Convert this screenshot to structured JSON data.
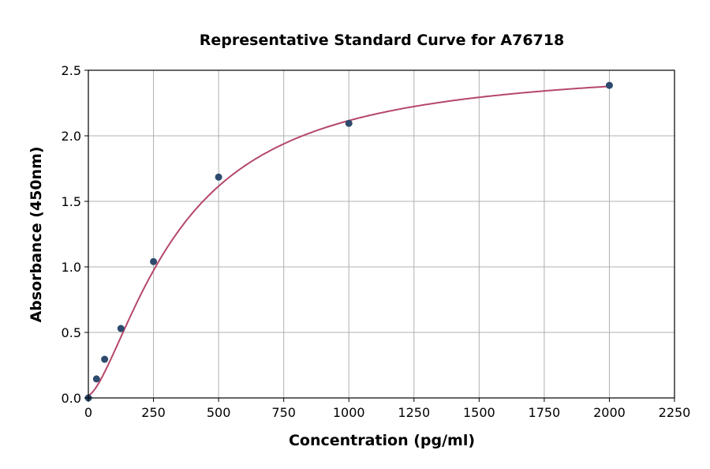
{
  "chart_data": {
    "type": "scatter",
    "title": "Representative Standard Curve for A76718",
    "xlabel": "Concentration (pg/ml)",
    "ylabel": "Absorbance (450nm)",
    "xlim": [
      0,
      2250
    ],
    "ylim": [
      0,
      2.5
    ],
    "xticks": [
      "0",
      "250",
      "500",
      "750",
      "1000",
      "1250",
      "1500",
      "1750",
      "2000",
      "2250"
    ],
    "yticks": [
      "0.0",
      "0.5",
      "1.0",
      "1.5",
      "2.0",
      "2.5"
    ],
    "grid": true,
    "points": [
      {
        "x": 0,
        "y": 0.0
      },
      {
        "x": 31.25,
        "y": 0.145
      },
      {
        "x": 62.5,
        "y": 0.295
      },
      {
        "x": 125,
        "y": 0.53
      },
      {
        "x": 250,
        "y": 1.04
      },
      {
        "x": 500,
        "y": 1.685
      },
      {
        "x": 1000,
        "y": 2.095
      },
      {
        "x": 2000,
        "y": 2.385
      }
    ],
    "fit_curve": "4-parameter logistic",
    "colors": {
      "points": "#2e4a6e",
      "curve": "#b5476a",
      "grid": "#b0b0b0"
    }
  }
}
